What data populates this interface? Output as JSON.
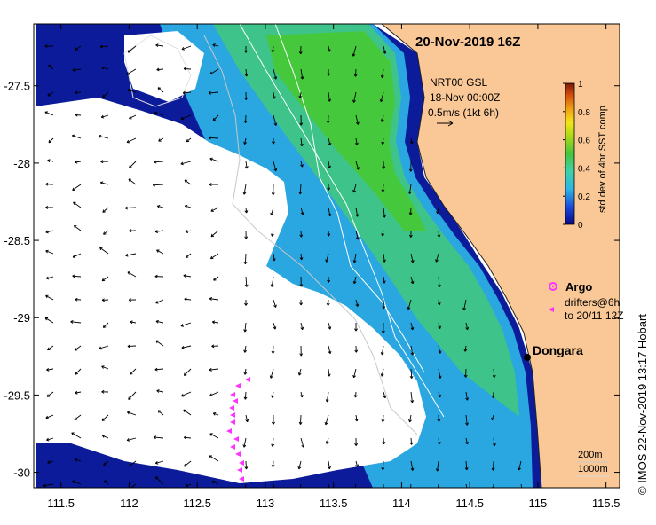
{
  "map": {
    "title": "20-Nov-2019 16Z",
    "product": {
      "line1": "NRT00 GSL",
      "line2": "18-Nov 00:00Z",
      "scale_label": "0.5m/s (1kt 6h)"
    },
    "colorbar": {
      "title": "std dev of 4hr SST comp",
      "ticks": [
        "0",
        "0.2",
        "0.4",
        "0.6",
        "0.8",
        "1"
      ],
      "colors": [
        "#08088a",
        "#1b48d8",
        "#2fb4e6",
        "#3fd2a6",
        "#45c43e",
        "#a8d818",
        "#f3e51a",
        "#f0a014",
        "#d24c0c",
        "#7a1a08"
      ]
    },
    "axes": {
      "x_ticks": [
        "111.5",
        "112",
        "112.5",
        "113",
        "113.5",
        "114",
        "114.5",
        "115",
        "115.5"
      ],
      "y_ticks": [
        "-27.5",
        "-28",
        "-28.5",
        "-29",
        "-29.5",
        "-30"
      ],
      "x_values": [
        111.5,
        112,
        112.5,
        113,
        113.5,
        114,
        114.5,
        115,
        115.5
      ],
      "y_values": [
        -27.5,
        -28,
        -28.5,
        -29,
        -29.5,
        -30
      ]
    },
    "legend": {
      "argo": "Argo",
      "drifters_line1": "drifters@6h",
      "drifters_line2": "to 20/11 12Z"
    },
    "place": {
      "name": "Dongara",
      "lon": 114.93,
      "lat": -29.25
    },
    "isobaths": {
      "shallow": "200m",
      "deep": "1000m"
    },
    "credit": "© IMOS 22-Nov-2019 13:17 Hobart",
    "colors": {
      "land": "#fac896",
      "coast": "#222222",
      "argo": "#ff33ff",
      "drifter": "#ff33ff",
      "isobath": "#ffffff"
    }
  }
}
